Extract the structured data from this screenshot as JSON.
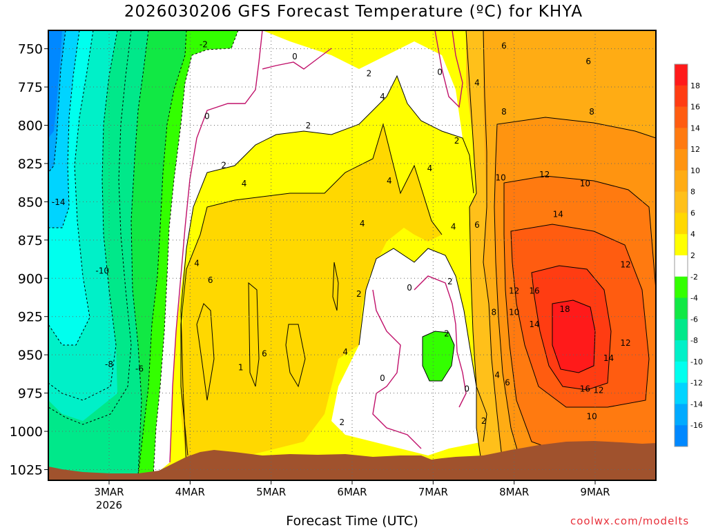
{
  "title": "2026030206 GFS Forecast Temperature (ºC) for KHYA",
  "xlabel": "Forecast Time (UTC)",
  "credit": "coolwx.com/modelts",
  "chart_data": {
    "type": "heatmap",
    "title": "2026030206 GFS Forecast Temperature (ºC) for KHYA",
    "xlabel": "Forecast Time (UTC)",
    "ylabel": "",
    "y_axis": {
      "ticks": [
        750,
        775,
        800,
        825,
        850,
        875,
        900,
        925,
        950,
        975,
        1000,
        1025
      ],
      "lim": [
        738,
        1032
      ],
      "inverted": true
    },
    "x_axis": {
      "ticks": [
        {
          "t": 18,
          "label": "3MAR",
          "sub": "2026"
        },
        {
          "t": 42,
          "label": "4MAR",
          "sub": ""
        },
        {
          "t": 66,
          "label": "5MAR",
          "sub": ""
        },
        {
          "t": 90,
          "label": "6MAR",
          "sub": ""
        },
        {
          "t": 114,
          "label": "7MAR",
          "sub": ""
        },
        {
          "t": 138,
          "label": "8MAR",
          "sub": ""
        },
        {
          "t": 162,
          "label": "9MAR",
          "sub": ""
        }
      ],
      "lim": [
        0,
        180
      ]
    },
    "colorbar": {
      "labels": [
        "18",
        "16",
        "14",
        "12",
        "10",
        "8",
        "6",
        "4",
        "2",
        "-2",
        "-4",
        "-6",
        "-8",
        "-10",
        "-12",
        "-14",
        "-16"
      ],
      "colors": [
        "#ff1a1a",
        "#ff3c12",
        "#ff5c10",
        "#ff7a10",
        "#ff9410",
        "#ffac14",
        "#ffc01a",
        "#ffd800",
        "#ffff00",
        "#ffffff",
        "#33ff00",
        "#11e844",
        "#00e88a",
        "#00f0c8",
        "#00ffee",
        "#00d4ff",
        "#00aaff",
        "#0088ff"
      ]
    },
    "terrain_color": "#a0522d",
    "grid": true,
    "contour_labels": [
      {
        "v": "-14",
        "t": 3,
        "p": 852
      },
      {
        "v": "-10",
        "t": 16,
        "p": 897
      },
      {
        "v": "-8",
        "t": 18,
        "p": 958
      },
      {
        "v": "-6",
        "t": 27,
        "p": 961
      },
      {
        "v": "-2",
        "t": 46,
        "p": 749
      },
      {
        "v": "0",
        "t": 47,
        "p": 796
      },
      {
        "v": "2",
        "t": 52,
        "p": 828
      },
      {
        "v": "4",
        "t": 58,
        "p": 840
      },
      {
        "v": "4",
        "t": 44,
        "p": 892
      },
      {
        "v": "6",
        "t": 48,
        "p": 903
      },
      {
        "v": "6",
        "t": 64,
        "p": 951
      },
      {
        "v": "1",
        "t": 57,
        "p": 960
      },
      {
        "v": "0",
        "t": 73,
        "p": 757
      },
      {
        "v": "2",
        "t": 77,
        "p": 802
      },
      {
        "v": "2",
        "t": 95,
        "p": 768
      },
      {
        "v": "4",
        "t": 99,
        "p": 783
      },
      {
        "v": "4",
        "t": 101,
        "p": 838
      },
      {
        "v": "4",
        "t": 93,
        "p": 866
      },
      {
        "v": "0",
        "t": 116,
        "p": 767
      },
      {
        "v": "4",
        "t": 127,
        "p": 774
      },
      {
        "v": "2",
        "t": 121,
        "p": 812
      },
      {
        "v": "4",
        "t": 113,
        "p": 830
      },
      {
        "v": "4",
        "t": 120,
        "p": 868
      },
      {
        "v": "2",
        "t": 119,
        "p": 904
      },
      {
        "v": "0",
        "t": 107,
        "p": 908
      },
      {
        "v": "2",
        "t": 92,
        "p": 912
      },
      {
        "v": "4",
        "t": 88,
        "p": 950
      },
      {
        "v": "0",
        "t": 99,
        "p": 967
      },
      {
        "v": "2",
        "t": 118,
        "p": 938
      },
      {
        "v": "0",
        "t": 124,
        "p": 974
      },
      {
        "v": "2",
        "t": 87,
        "p": 996
      },
      {
        "v": "2",
        "t": 129,
        "p": 995
      },
      {
        "v": "6",
        "t": 135,
        "p": 750
      },
      {
        "v": "6",
        "t": 160,
        "p": 760
      },
      {
        "v": "8",
        "t": 135,
        "p": 793
      },
      {
        "v": "8",
        "t": 161,
        "p": 793
      },
      {
        "v": "6",
        "t": 127,
        "p": 867
      },
      {
        "v": "10",
        "t": 134,
        "p": 836
      },
      {
        "v": "12",
        "t": 147,
        "p": 834
      },
      {
        "v": "10",
        "t": 159,
        "p": 840
      },
      {
        "v": "14",
        "t": 151,
        "p": 860
      },
      {
        "v": "12",
        "t": 171,
        "p": 893
      },
      {
        "v": "12",
        "t": 138,
        "p": 910
      },
      {
        "v": "16",
        "t": 144,
        "p": 910
      },
      {
        "v": "10",
        "t": 138,
        "p": 924
      },
      {
        "v": "8",
        "t": 132,
        "p": 924
      },
      {
        "v": "18",
        "t": 153,
        "p": 922
      },
      {
        "v": "14",
        "t": 144,
        "p": 932
      },
      {
        "v": "12",
        "t": 171,
        "p": 944
      },
      {
        "v": "14",
        "t": 166,
        "p": 954
      },
      {
        "v": "4",
        "t": 133,
        "p": 965
      },
      {
        "v": "6",
        "t": 136,
        "p": 970
      },
      {
        "v": "16",
        "t": 159,
        "p": 974
      },
      {
        "v": "12",
        "t": 163,
        "p": 975
      },
      {
        "v": "10",
        "t": 161,
        "p": 992
      }
    ]
  }
}
